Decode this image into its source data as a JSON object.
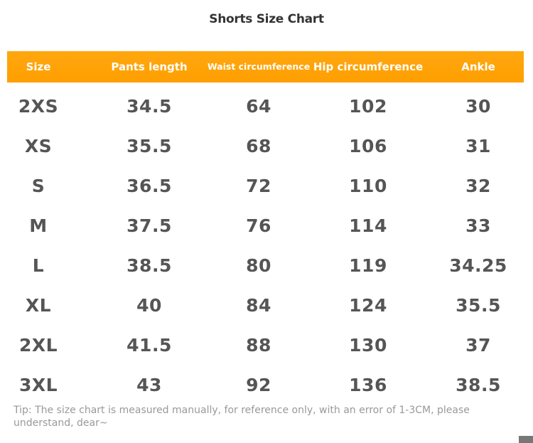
{
  "title": "Shorts Size Chart",
  "table": {
    "header": [
      "Size",
      "Pants length",
      "Waist circumference",
      "Hip circumference",
      "Ankle"
    ],
    "rows": [
      [
        "2XS",
        "34.5",
        "64",
        "102",
        "30"
      ],
      [
        "XS",
        "35.5",
        "68",
        "106",
        "31"
      ],
      [
        "S",
        "36.5",
        "72",
        "110",
        "32"
      ],
      [
        "M",
        "37.5",
        "76",
        "114",
        "33"
      ],
      [
        "L",
        "38.5",
        "80",
        "119",
        "34.25"
      ],
      [
        "XL",
        "40",
        "84",
        "124",
        "35.5"
      ],
      [
        "2XL",
        "41.5",
        "88",
        "130",
        "37"
      ],
      [
        "3XL",
        "43",
        "92",
        "136",
        "38.5"
      ]
    ]
  },
  "tip": "Tip: The size chart is measured manually, for reference only, with an error of 1-3CM, please understand, dear~"
}
